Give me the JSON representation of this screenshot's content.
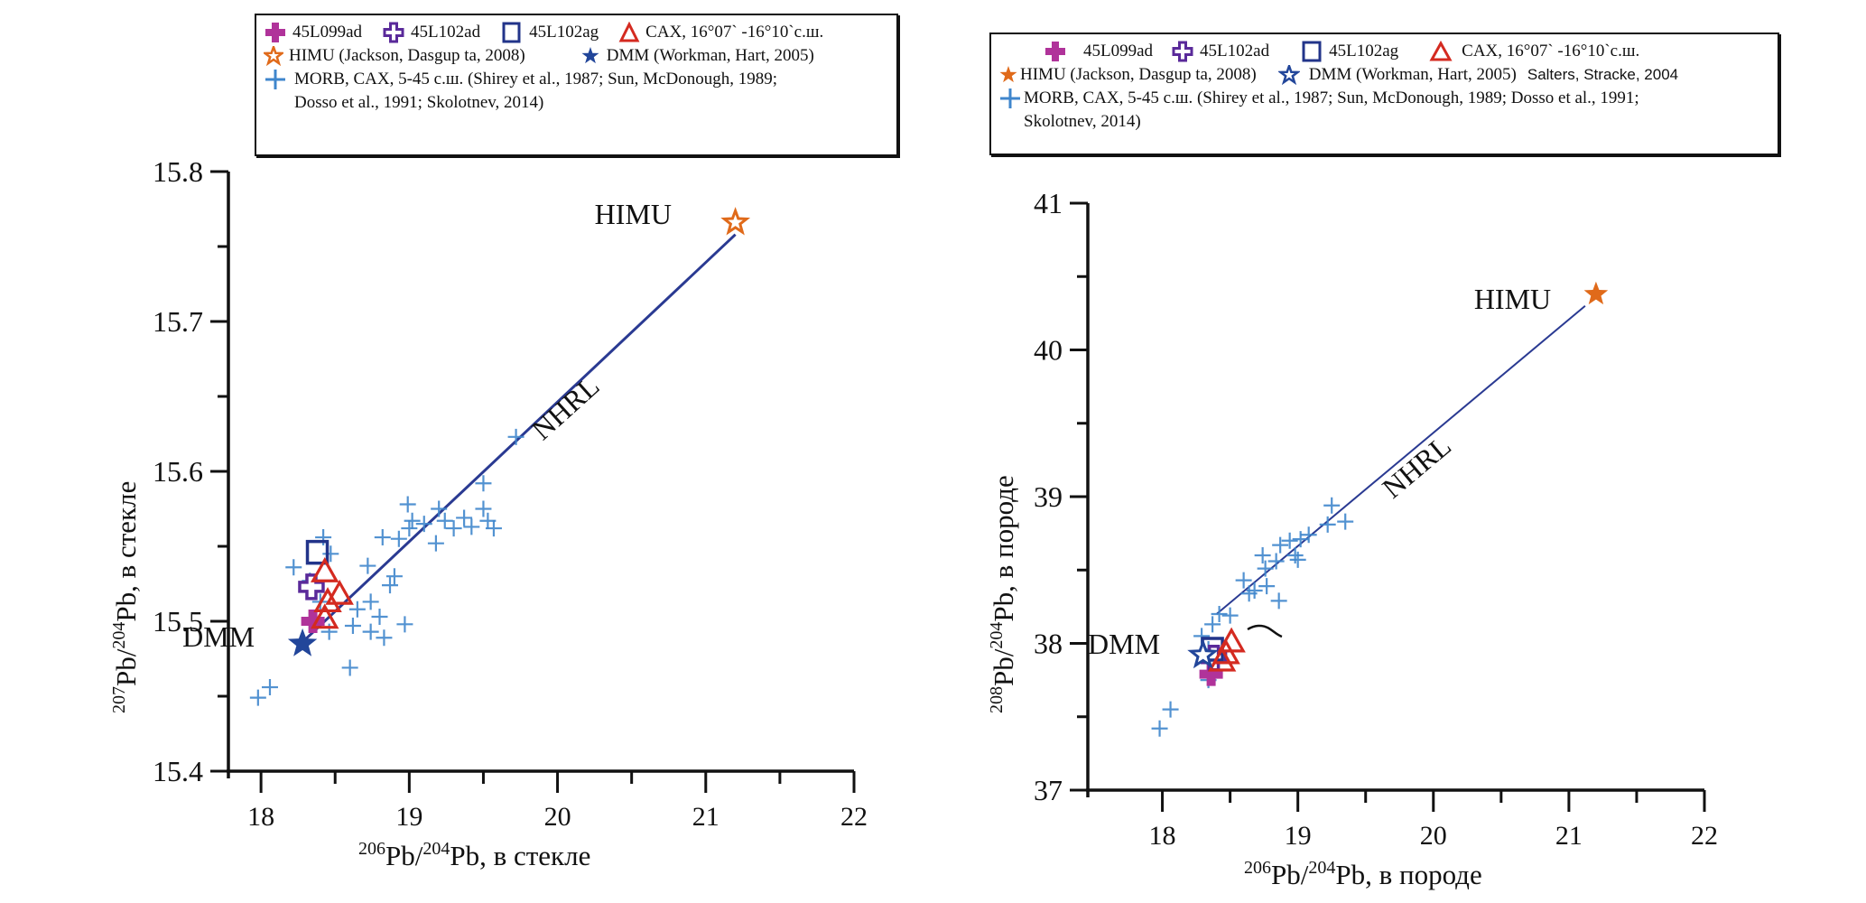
{
  "legend_items": {
    "s45L099ad": "45L099ad",
    "s45L102ad": "45L102ad",
    "s45L102ag": "45L102ag",
    "cax": "CAX, 16°07` -16°10`с.ш.",
    "himu": "HIMU (Jackson, Dasgup ta, 2008)",
    "dmm": "DMM (Workman, Hart, 2005)",
    "salters": "Salters, Stracke, 2004",
    "morb_line1_left": "MORB, CAX, 5-45 с.ш. (Shirey et al., 1987; Sun, McDonough, 1989;",
    "morb_line2_left": "Dosso et al., 1991; Skolotnev, 2014)",
    "morb_line1_right": "MORB, CAX, 5-45 с.ш. (Shirey et al., 1987; Sun, McDonough, 1989; Dosso et al., 1991;",
    "morb_line2_right": "Skolotnev, 2014)"
  },
  "colors": {
    "s45L099ad": "#b0339a",
    "s45L102ad": "#5a2a9a",
    "s45L102ag": "#22348a",
    "cax": "#d42a20",
    "himu": "#e06a1a",
    "dmm": "#22469a",
    "morb": "#3f86cc",
    "nhrl": "#2a3a92",
    "axis": "#111111"
  },
  "chart_data": [
    {
      "type": "scatter",
      "title": "",
      "xlabel": {
        "sup1": "206",
        "base1": "Pb/",
        "sup2": "204",
        "base2": "Pb, в стекле"
      },
      "ylabel": {
        "sup1": "207",
        "base1": "Pb/",
        "sup2": "204",
        "base2": "Pb, в стекле"
      },
      "xlim": [
        17.78,
        22
      ],
      "ylim": [
        15.4,
        15.8
      ],
      "xticks": [
        18,
        19,
        20,
        21,
        22
      ],
      "xtick_labels": [
        "18",
        "19",
        "20",
        "21",
        "22"
      ],
      "yticks": [
        15.4,
        15.5,
        15.6,
        15.7,
        15.8
      ],
      "ytick_labels": [
        "15.4",
        "15.5",
        "15.6",
        "15.7",
        "15.8"
      ],
      "grid": false,
      "legend_position": "top",
      "annotations": [
        {
          "text": "HIMU",
          "x": 20.25,
          "y": 15.765
        },
        {
          "text": "DMM",
          "x": 17.47,
          "y": 15.483
        },
        {
          "text": "NHRL",
          "x": 19.9,
          "y": 15.62,
          "rotation": -42
        }
      ],
      "reference_line": {
        "name": "NHRL",
        "x": [
          18.3,
          21.2
        ],
        "y": [
          15.488,
          15.758
        ]
      },
      "series": [
        {
          "name": "MORB, CAX, 5-45 с.ш.",
          "marker": "plus",
          "points": [
            [
              17.98,
              15.449
            ],
            [
              18.06,
              15.456
            ],
            [
              18.22,
              15.536
            ],
            [
              18.42,
              15.556
            ],
            [
              18.47,
              15.545
            ],
            [
              18.4,
              15.513
            ],
            [
              18.46,
              15.493
            ],
            [
              18.6,
              15.469
            ],
            [
              18.62,
              15.497
            ],
            [
              18.65,
              15.508
            ],
            [
              18.74,
              15.513
            ],
            [
              18.72,
              15.537
            ],
            [
              18.74,
              15.493
            ],
            [
              18.8,
              15.503
            ],
            [
              18.83,
              15.489
            ],
            [
              18.87,
              15.524
            ],
            [
              18.9,
              15.53
            ],
            [
              18.97,
              15.498
            ],
            [
              18.82,
              15.556
            ],
            [
              18.93,
              15.555
            ],
            [
              18.99,
              15.578
            ],
            [
              19.0,
              15.562
            ],
            [
              19.02,
              15.567
            ],
            [
              19.1,
              15.565
            ],
            [
              19.18,
              15.552
            ],
            [
              19.2,
              15.575
            ],
            [
              19.24,
              15.567
            ],
            [
              19.3,
              15.562
            ],
            [
              19.37,
              15.569
            ],
            [
              19.42,
              15.563
            ],
            [
              19.5,
              15.575
            ],
            [
              19.53,
              15.567
            ],
            [
              19.57,
              15.562
            ],
            [
              19.5,
              15.592
            ],
            [
              19.72,
              15.623
            ],
            [
              18.33,
              15.527
            ]
          ]
        },
        {
          "name": "45L099ad",
          "marker": "filled-cross",
          "points": [
            [
              18.35,
              15.5
            ]
          ]
        },
        {
          "name": "45L102ad",
          "marker": "open-cross",
          "points": [
            [
              18.34,
              15.523
            ]
          ]
        },
        {
          "name": "45L102ag",
          "marker": "open-square",
          "points": [
            [
              18.38,
              15.546
            ]
          ]
        },
        {
          "name": "CAX, 16°07` -16°10`с.ш.",
          "marker": "open-triangle",
          "points": [
            [
              18.43,
              15.533
            ],
            [
              18.45,
              15.513
            ],
            [
              18.53,
              15.518
            ],
            [
              18.43,
              15.502
            ]
          ]
        },
        {
          "name": "HIMU",
          "marker": "open-star",
          "points": [
            [
              21.2,
              15.766
            ]
          ]
        },
        {
          "name": "DMM",
          "marker": "filled-star",
          "points": [
            [
              18.28,
              15.485
            ]
          ]
        }
      ]
    },
    {
      "type": "scatter",
      "title": "",
      "xlabel": {
        "sup1": "206",
        "base1": "Pb/",
        "sup2": "204",
        "base2": "Pb, в породе"
      },
      "ylabel": {
        "sup1": "208",
        "base1": "Pb/",
        "sup2": "204",
        "base2": "Pb, в породе"
      },
      "xlim": [
        17.45,
        22
      ],
      "ylim": [
        37,
        41
      ],
      "xticks": [
        18,
        19,
        20,
        21,
        22
      ],
      "xtick_labels": [
        "18",
        "19",
        "20",
        "21",
        "22"
      ],
      "yticks": [
        37,
        38,
        39,
        40,
        41
      ],
      "ytick_labels": [
        "37",
        "38",
        "39",
        "40",
        "41"
      ],
      "grid": false,
      "legend_position": "top",
      "annotations": [
        {
          "text": "HIMU",
          "x": 20.3,
          "y": 40.28
        },
        {
          "text": "DMM",
          "x": 17.45,
          "y": 37.93
        },
        {
          "text": "NHRL",
          "x": 19.7,
          "y": 38.98,
          "rotation": -40
        }
      ],
      "reference_line": {
        "name": "NHRL",
        "x": [
          18.4,
          21.12
        ],
        "y": [
          38.2,
          40.3
        ]
      },
      "series": [
        {
          "name": "MORB, CAX, 5-45 с.ш.",
          "marker": "plus",
          "points": [
            [
              17.98,
              37.42
            ],
            [
              18.06,
              37.55
            ],
            [
              18.34,
              37.75
            ],
            [
              18.37,
              38.13
            ],
            [
              18.42,
              38.2
            ],
            [
              18.5,
              38.19
            ],
            [
              18.6,
              38.43
            ],
            [
              18.64,
              38.34
            ],
            [
              18.68,
              38.36
            ],
            [
              18.76,
              38.51
            ],
            [
              18.74,
              38.6
            ],
            [
              18.84,
              38.56
            ],
            [
              18.87,
              38.67
            ],
            [
              18.94,
              38.7
            ],
            [
              18.98,
              38.6
            ],
            [
              19.0,
              38.57
            ],
            [
              19.02,
              38.71
            ],
            [
              18.77,
              38.39
            ],
            [
              18.86,
              38.29
            ],
            [
              19.08,
              38.74
            ],
            [
              19.22,
              38.81
            ],
            [
              19.25,
              38.94
            ],
            [
              19.35,
              38.83
            ],
            [
              18.34,
              37.96
            ],
            [
              18.29,
              38.05
            ]
          ]
        },
        {
          "name": "45L099ad",
          "marker": "filled-cross",
          "points": [
            [
              18.36,
              37.79
            ]
          ]
        },
        {
          "name": "45L102ad",
          "marker": "open-cross",
          "points": [
            [
              18.38,
              37.9
            ]
          ]
        },
        {
          "name": "45L102ag",
          "marker": "open-square",
          "points": [
            [
              18.37,
              37.96
            ]
          ]
        },
        {
          "name": "CAX, 16°07` -16°10`с.ш.",
          "marker": "open-triangle",
          "points": [
            [
              18.44,
              37.88
            ],
            [
              18.47,
              37.93
            ],
            [
              18.51,
              38.01
            ]
          ]
        },
        {
          "name": "HIMU",
          "marker": "filled-star",
          "points": [
            [
              21.2,
              40.38
            ]
          ]
        },
        {
          "name": "DMM",
          "marker": "open-star",
          "points": [
            [
              18.3,
              37.92
            ]
          ]
        }
      ]
    }
  ]
}
